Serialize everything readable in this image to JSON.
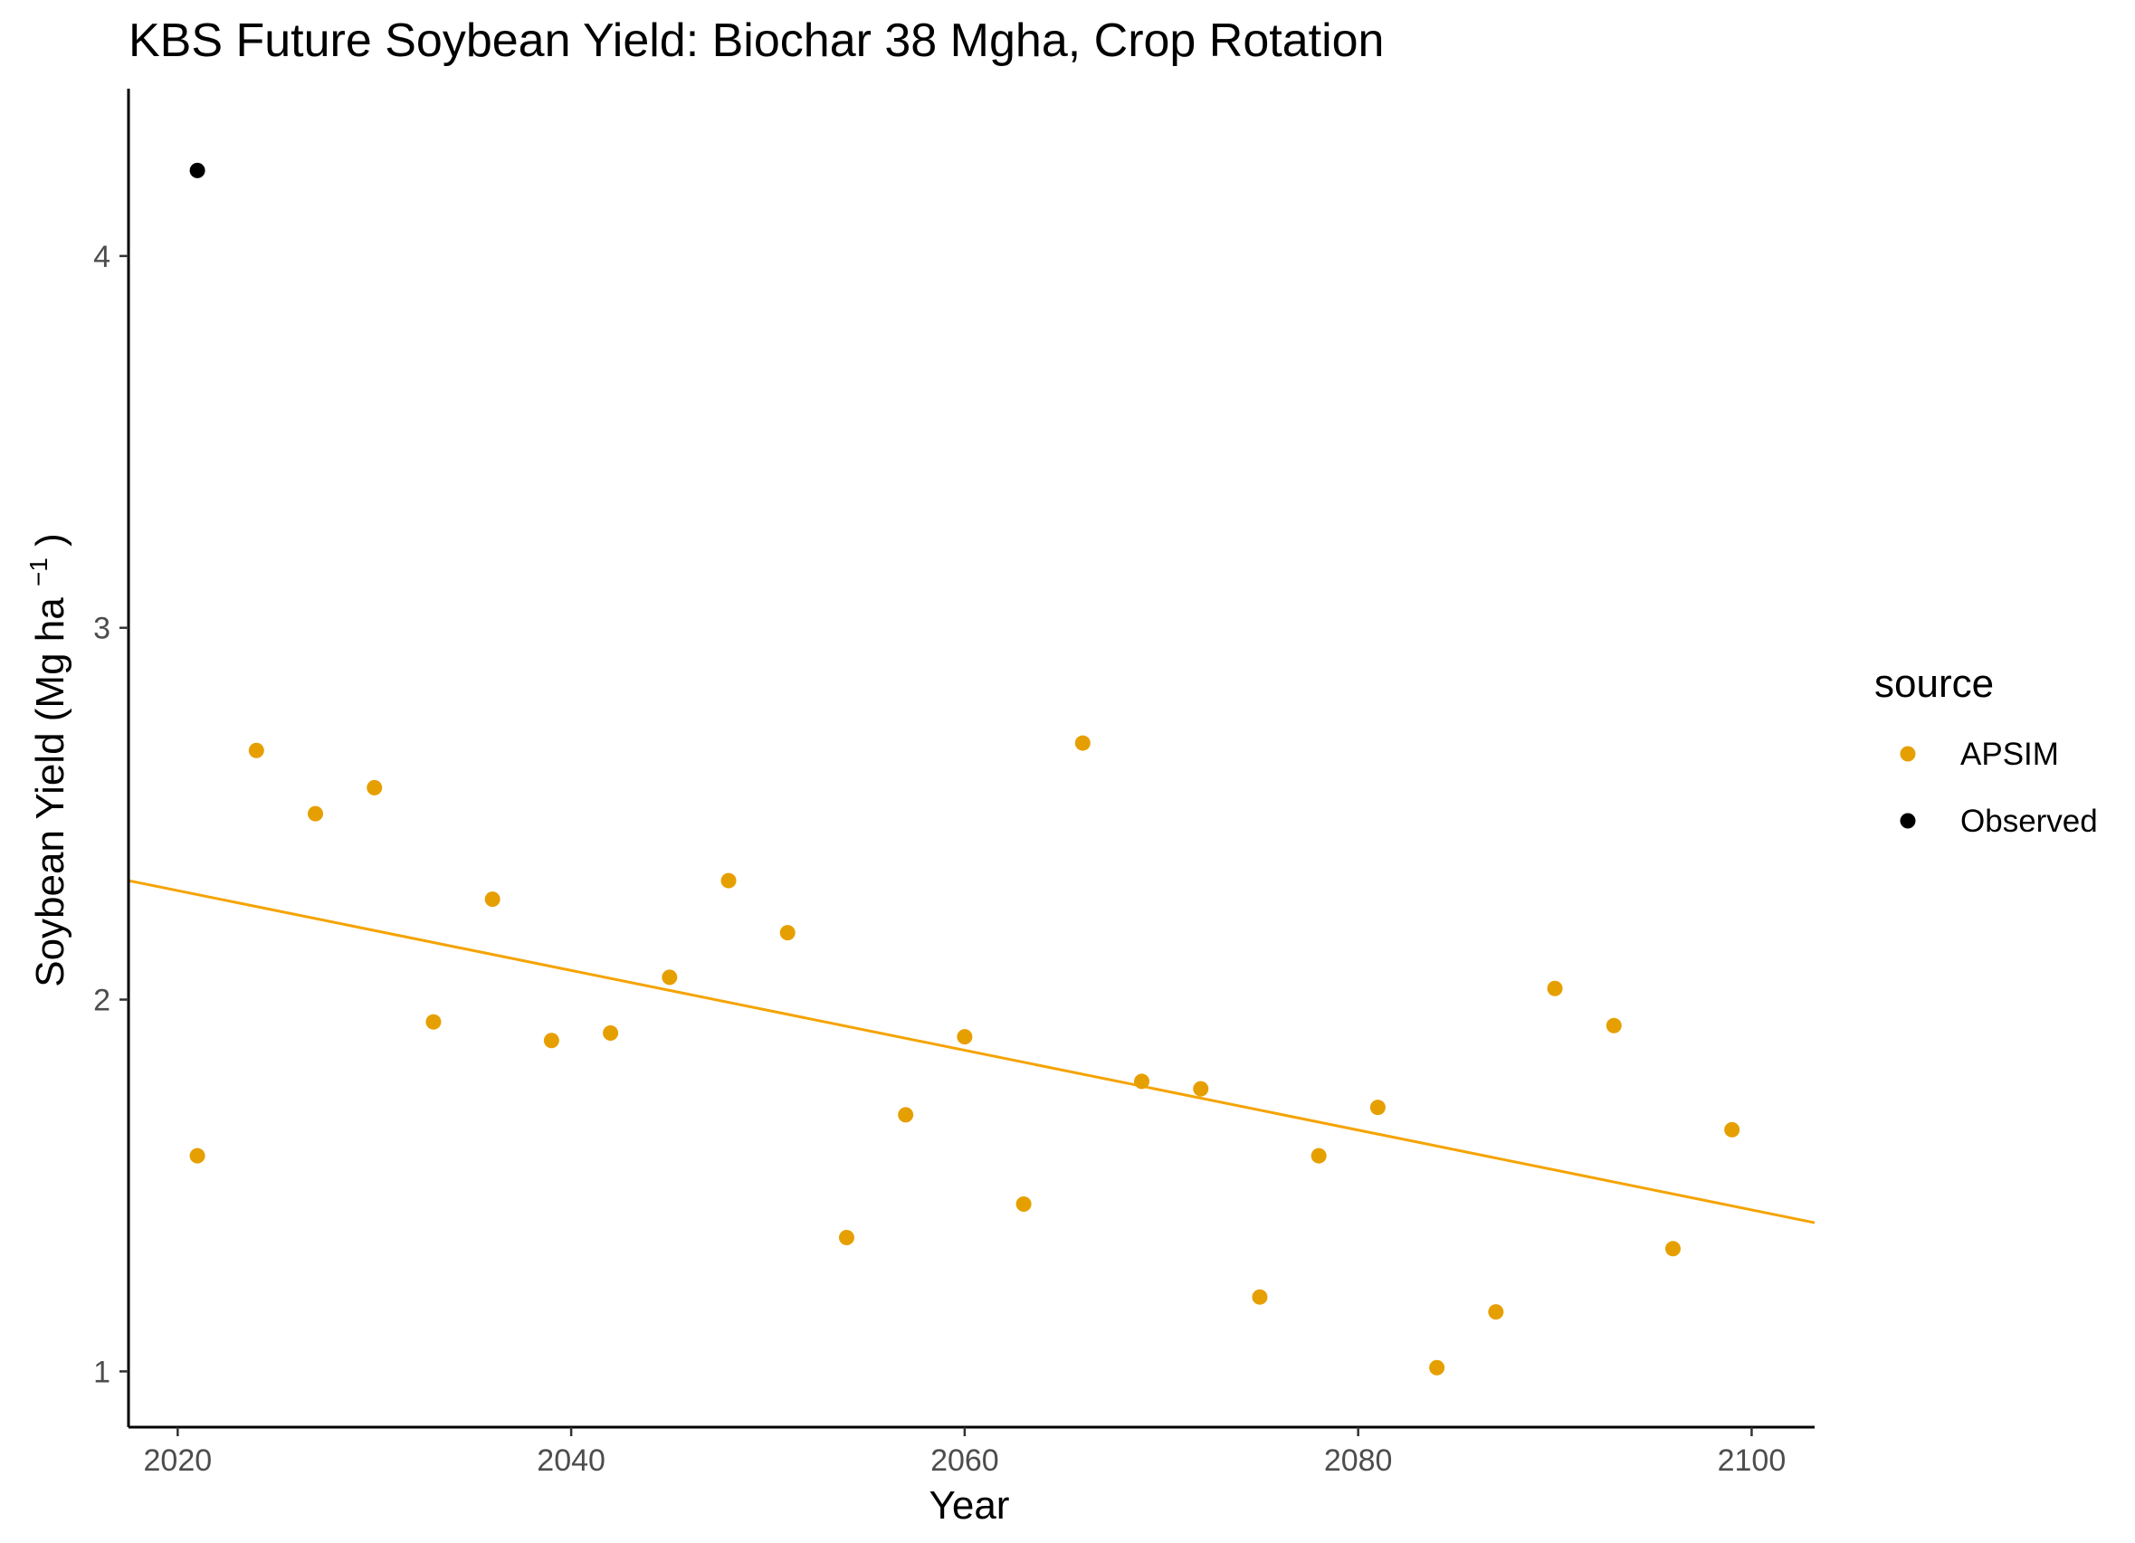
{
  "chart_data": {
    "type": "scatter",
    "title": "KBS Future Soybean Yield:  Biochar 38 Mgha, Crop Rotation",
    "xlabel": "Year",
    "ylabel": {
      "main": "Soybean Yield (Mg ha",
      "superscript": "−1",
      "close": ")"
    },
    "xlim": [
      2017.5,
      2103.2
    ],
    "ylim": [
      0.85,
      4.45
    ],
    "x_ticks": [
      2020,
      2040,
      2060,
      2080,
      2100
    ],
    "y_ticks": [
      1,
      2,
      3,
      4
    ],
    "grid": false,
    "legend": {
      "title": "source",
      "position": "right"
    },
    "colors": {
      "APSIM": "#E69F00",
      "Observed": "#000000",
      "trend": "#F5A300",
      "axis": "#000000"
    },
    "series": [
      {
        "name": "APSIM",
        "points": [
          {
            "x": 2021,
            "y": 1.58
          },
          {
            "x": 2024,
            "y": 2.67
          },
          {
            "x": 2027,
            "y": 2.5
          },
          {
            "x": 2030,
            "y": 2.57
          },
          {
            "x": 2033,
            "y": 1.94
          },
          {
            "x": 2036,
            "y": 2.27
          },
          {
            "x": 2039,
            "y": 1.89
          },
          {
            "x": 2042,
            "y": 1.91
          },
          {
            "x": 2045,
            "y": 2.06
          },
          {
            "x": 2048,
            "y": 2.32
          },
          {
            "x": 2051,
            "y": 2.18
          },
          {
            "x": 2054,
            "y": 1.36
          },
          {
            "x": 2057,
            "y": 1.69
          },
          {
            "x": 2060,
            "y": 1.9
          },
          {
            "x": 2063,
            "y": 1.45
          },
          {
            "x": 2066,
            "y": 2.69
          },
          {
            "x": 2069,
            "y": 1.78
          },
          {
            "x": 2072,
            "y": 1.76
          },
          {
            "x": 2075,
            "y": 1.2
          },
          {
            "x": 2078,
            "y": 1.58
          },
          {
            "x": 2081,
            "y": 1.71
          },
          {
            "x": 2084,
            "y": 1.01
          },
          {
            "x": 2087,
            "y": 1.16
          },
          {
            "x": 2090,
            "y": 2.03
          },
          {
            "x": 2093,
            "y": 1.93
          },
          {
            "x": 2096,
            "y": 1.33
          },
          {
            "x": 2099,
            "y": 1.65
          }
        ]
      },
      {
        "name": "Observed",
        "points": [
          {
            "x": 2021,
            "y": 4.23
          }
        ]
      }
    ],
    "trend_line": {
      "series": "APSIM",
      "points": [
        {
          "x": 2017.5,
          "y": 2.32
        },
        {
          "x": 2103.2,
          "y": 1.4
        }
      ]
    }
  }
}
